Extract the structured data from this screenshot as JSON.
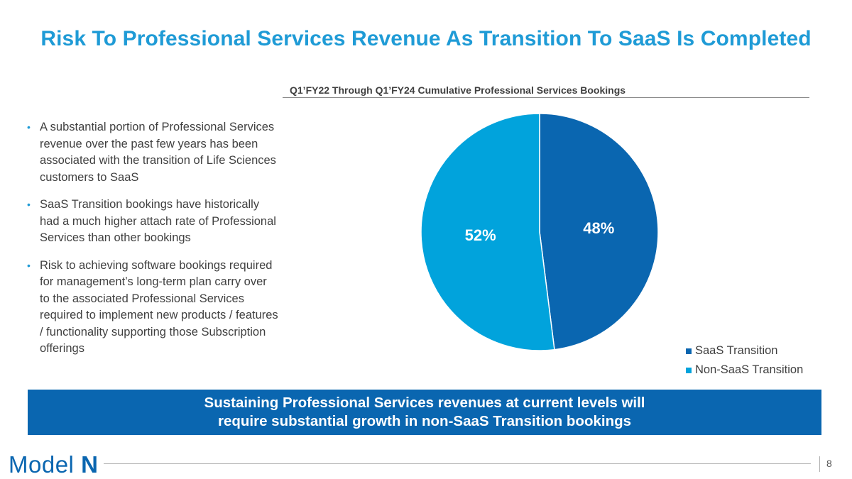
{
  "title": "Risk To Professional Services Revenue As Transition To SaaS Is Completed",
  "bullets": [
    "A substantial portion of Professional Services revenue over the past few years has been associated with the transition of Life Sciences customers to SaaS",
    "SaaS Transition bookings have historically had a much higher attach rate of Professional Services than other bookings",
    "Risk to achieving software bookings required for management’s long-term plan carry over to the associated Professional Services required to implement new products / features / functionality supporting those Subscription offerings"
  ],
  "bullet_char": "•",
  "chart_data": {
    "type": "pie",
    "title": "Q1’FY22 Through Q1’FY24 Cumulative Professional Services Bookings",
    "categories": [
      "SaaS Transition",
      "Non-SaaS Transition"
    ],
    "values": [
      48,
      52
    ],
    "labels": [
      "48%",
      "52%"
    ],
    "colors": [
      "#0a66b0",
      "#01a3dc"
    ],
    "legend": "bottom-right"
  },
  "banner": {
    "line1": "Sustaining Professional Services revenues at current levels will",
    "line2": "require substantial growth in non-SaaS Transition bookings"
  },
  "footer": {
    "logo_word": "Model",
    "logo_letter": "N",
    "page_number": "8"
  }
}
